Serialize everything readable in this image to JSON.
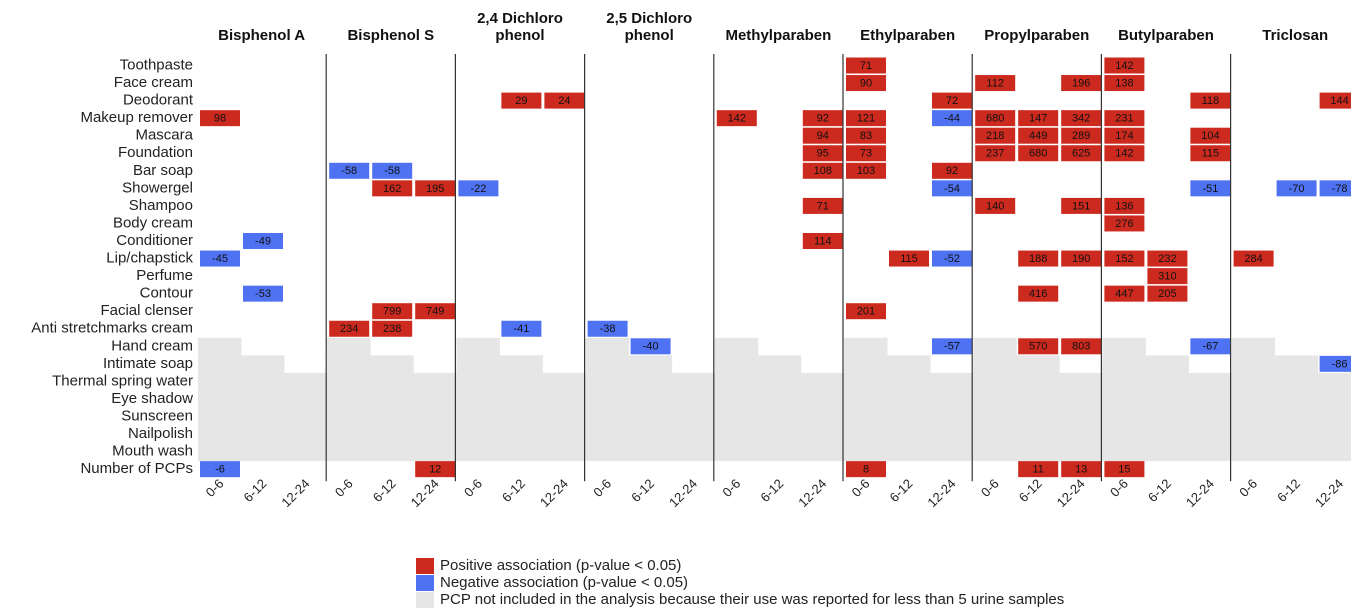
{
  "chart_data": {
    "type": "heatmap",
    "rows": [
      "Toothpaste",
      "Face cream",
      "Deodorant",
      "Makeup remover",
      "Mascara",
      "Foundation",
      "Bar soap",
      "Showergel",
      "Shampoo",
      "Body cream",
      "Conditioner",
      "Lip/chapstick",
      "Perfume",
      "Contour",
      "Facial clenser",
      "Anti stretchmarks cream",
      "Hand cream",
      "Intimate soap",
      "Thermal spring water",
      "Eye shadow",
      "Sunscreen",
      "Nailpolish",
      "Mouth wash",
      "Number of PCPs"
    ],
    "columns": [
      "0-6",
      "6-12",
      "12-24"
    ],
    "excluded_rows": [
      [
        16,
        17,
        18,
        19,
        20,
        21,
        22
      ],
      [
        17,
        18,
        19,
        20,
        21,
        22
      ],
      [
        18,
        19,
        20,
        21,
        22
      ]
    ],
    "legend": [
      {
        "label": "Positive association (p-value < 0.05)",
        "color": "#cc2a1e"
      },
      {
        "label": "Negative association (p-value < 0.05)",
        "color": "#4f72f2"
      },
      {
        "label": "PCP not included in the analysis because their use was reported for less than 5 urine samples",
        "color": "#e6e6e6"
      }
    ],
    "panels": [
      {
        "title": "Bisphenol A",
        "values": [
          [
            null,
            null,
            null
          ],
          [
            null,
            null,
            null
          ],
          [
            null,
            null,
            null
          ],
          [
            98,
            null,
            null
          ],
          [
            null,
            null,
            null
          ],
          [
            null,
            null,
            null
          ],
          [
            null,
            null,
            null
          ],
          [
            null,
            null,
            null
          ],
          [
            null,
            null,
            null
          ],
          [
            null,
            null,
            null
          ],
          [
            null,
            -49,
            null
          ],
          [
            -45,
            null,
            null
          ],
          [
            null,
            null,
            null
          ],
          [
            null,
            -53,
            null
          ],
          [
            null,
            null,
            null
          ],
          [
            null,
            null,
            null
          ],
          [
            null,
            null,
            null
          ],
          [
            null,
            null,
            null
          ],
          [
            null,
            null,
            null
          ],
          [
            null,
            null,
            null
          ],
          [
            null,
            null,
            null
          ],
          [
            null,
            null,
            null
          ],
          [
            null,
            null,
            null
          ],
          [
            -6,
            null,
            null
          ]
        ]
      },
      {
        "title": "Bisphenol S",
        "values": [
          [
            null,
            null,
            null
          ],
          [
            null,
            null,
            null
          ],
          [
            null,
            null,
            null
          ],
          [
            null,
            null,
            null
          ],
          [
            null,
            null,
            null
          ],
          [
            null,
            null,
            null
          ],
          [
            -58,
            -58,
            null
          ],
          [
            null,
            162,
            195
          ],
          [
            null,
            null,
            null
          ],
          [
            null,
            null,
            null
          ],
          [
            null,
            null,
            null
          ],
          [
            null,
            null,
            null
          ],
          [
            null,
            null,
            null
          ],
          [
            null,
            null,
            null
          ],
          [
            null,
            799,
            749
          ],
          [
            234,
            238,
            null
          ],
          [
            null,
            null,
            null
          ],
          [
            null,
            null,
            null
          ],
          [
            null,
            null,
            null
          ],
          [
            null,
            null,
            null
          ],
          [
            null,
            null,
            null
          ],
          [
            null,
            null,
            null
          ],
          [
            null,
            null,
            null
          ],
          [
            null,
            null,
            12
          ]
        ]
      },
      {
        "title": "2,4 Dichloro phenol",
        "values": [
          [
            null,
            null,
            null
          ],
          [
            null,
            null,
            null
          ],
          [
            null,
            29,
            24
          ],
          [
            null,
            null,
            null
          ],
          [
            null,
            null,
            null
          ],
          [
            null,
            null,
            null
          ],
          [
            null,
            null,
            null
          ],
          [
            -22,
            null,
            null
          ],
          [
            null,
            null,
            null
          ],
          [
            null,
            null,
            null
          ],
          [
            null,
            null,
            null
          ],
          [
            null,
            null,
            null
          ],
          [
            null,
            null,
            null
          ],
          [
            null,
            null,
            null
          ],
          [
            null,
            null,
            null
          ],
          [
            null,
            -41,
            null
          ],
          [
            null,
            null,
            null
          ],
          [
            null,
            null,
            null
          ],
          [
            null,
            null,
            null
          ],
          [
            null,
            null,
            null
          ],
          [
            null,
            null,
            null
          ],
          [
            null,
            null,
            null
          ],
          [
            null,
            null,
            null
          ],
          [
            null,
            null,
            null
          ]
        ]
      },
      {
        "title": "2,5 Dichloro phenol",
        "values": [
          [
            null,
            null,
            null
          ],
          [
            null,
            null,
            null
          ],
          [
            null,
            null,
            null
          ],
          [
            null,
            null,
            null
          ],
          [
            null,
            null,
            null
          ],
          [
            null,
            null,
            null
          ],
          [
            null,
            null,
            null
          ],
          [
            null,
            null,
            null
          ],
          [
            null,
            null,
            null
          ],
          [
            null,
            null,
            null
          ],
          [
            null,
            null,
            null
          ],
          [
            null,
            null,
            null
          ],
          [
            null,
            null,
            null
          ],
          [
            null,
            null,
            null
          ],
          [
            null,
            null,
            null
          ],
          [
            -38,
            null,
            null
          ],
          [
            null,
            -40,
            null
          ],
          [
            null,
            null,
            null
          ],
          [
            null,
            null,
            null
          ],
          [
            null,
            null,
            null
          ],
          [
            null,
            null,
            null
          ],
          [
            null,
            null,
            null
          ],
          [
            null,
            null,
            null
          ],
          [
            null,
            null,
            null
          ]
        ]
      },
      {
        "title": "Methylparaben",
        "values": [
          [
            null,
            null,
            null
          ],
          [
            null,
            null,
            null
          ],
          [
            null,
            null,
            null
          ],
          [
            142,
            null,
            92
          ],
          [
            null,
            null,
            94
          ],
          [
            null,
            null,
            95
          ],
          [
            null,
            null,
            108
          ],
          [
            null,
            null,
            null
          ],
          [
            null,
            null,
            71
          ],
          [
            null,
            null,
            null
          ],
          [
            null,
            null,
            114
          ],
          [
            null,
            null,
            null
          ],
          [
            null,
            null,
            null
          ],
          [
            null,
            null,
            null
          ],
          [
            null,
            null,
            null
          ],
          [
            null,
            null,
            null
          ],
          [
            null,
            null,
            null
          ],
          [
            null,
            null,
            null
          ],
          [
            null,
            null,
            null
          ],
          [
            null,
            null,
            null
          ],
          [
            null,
            null,
            null
          ],
          [
            null,
            null,
            null
          ],
          [
            null,
            null,
            null
          ],
          [
            null,
            null,
            null
          ]
        ]
      },
      {
        "title": "Ethylparaben",
        "values": [
          [
            71,
            null,
            null
          ],
          [
            90,
            null,
            null
          ],
          [
            null,
            null,
            72
          ],
          [
            121,
            null,
            -44
          ],
          [
            83,
            null,
            null
          ],
          [
            73,
            null,
            null
          ],
          [
            103,
            null,
            92
          ],
          [
            null,
            null,
            -54
          ],
          [
            null,
            null,
            null
          ],
          [
            null,
            null,
            null
          ],
          [
            null,
            null,
            null
          ],
          [
            null,
            115,
            -52
          ],
          [
            null,
            null,
            null
          ],
          [
            null,
            null,
            null
          ],
          [
            201,
            null,
            null
          ],
          [
            null,
            null,
            null
          ],
          [
            null,
            null,
            -57
          ],
          [
            null,
            null,
            null
          ],
          [
            null,
            null,
            null
          ],
          [
            null,
            null,
            null
          ],
          [
            null,
            null,
            null
          ],
          [
            null,
            null,
            null
          ],
          [
            null,
            null,
            null
          ],
          [
            8,
            null,
            null
          ]
        ]
      },
      {
        "title": "Propylparaben",
        "values": [
          [
            null,
            null,
            null
          ],
          [
            112,
            null,
            196
          ],
          [
            null,
            null,
            null
          ],
          [
            680,
            147,
            342
          ],
          [
            218,
            449,
            289
          ],
          [
            237,
            680,
            625
          ],
          [
            null,
            null,
            null
          ],
          [
            null,
            null,
            null
          ],
          [
            140,
            null,
            151
          ],
          [
            null,
            null,
            null
          ],
          [
            null,
            null,
            null
          ],
          [
            null,
            188,
            190
          ],
          [
            null,
            null,
            null
          ],
          [
            null,
            416,
            null
          ],
          [
            null,
            null,
            null
          ],
          [
            null,
            null,
            null
          ],
          [
            null,
            570,
            803
          ],
          [
            null,
            null,
            null
          ],
          [
            null,
            null,
            null
          ],
          [
            null,
            null,
            null
          ],
          [
            null,
            null,
            null
          ],
          [
            null,
            null,
            null
          ],
          [
            null,
            null,
            null
          ],
          [
            null,
            11,
            13
          ]
        ]
      },
      {
        "title": "Butylparaben",
        "values": [
          [
            142,
            null,
            null
          ],
          [
            138,
            null,
            null
          ],
          [
            null,
            null,
            118
          ],
          [
            231,
            null,
            null
          ],
          [
            174,
            null,
            104
          ],
          [
            142,
            null,
            115
          ],
          [
            null,
            null,
            null
          ],
          [
            null,
            null,
            -51
          ],
          [
            136,
            null,
            null
          ],
          [
            276,
            null,
            null
          ],
          [
            null,
            null,
            null
          ],
          [
            152,
            232,
            null
          ],
          [
            null,
            310,
            null
          ],
          [
            447,
            205,
            null
          ],
          [
            null,
            null,
            null
          ],
          [
            null,
            null,
            null
          ],
          [
            null,
            null,
            -67
          ],
          [
            null,
            null,
            null
          ],
          [
            null,
            null,
            null
          ],
          [
            null,
            null,
            null
          ],
          [
            null,
            null,
            null
          ],
          [
            null,
            null,
            null
          ],
          [
            null,
            null,
            null
          ],
          [
            15,
            null,
            null
          ]
        ]
      },
      {
        "title": "Triclosan",
        "values": [
          [
            null,
            null,
            null
          ],
          [
            null,
            null,
            null
          ],
          [
            null,
            null,
            144
          ],
          [
            null,
            null,
            null
          ],
          [
            null,
            null,
            null
          ],
          [
            null,
            null,
            null
          ],
          [
            null,
            null,
            null
          ],
          [
            null,
            -70,
            -78
          ],
          [
            null,
            null,
            null
          ],
          [
            null,
            null,
            null
          ],
          [
            null,
            null,
            null
          ],
          [
            284,
            null,
            null
          ],
          [
            null,
            null,
            null
          ],
          [
            null,
            null,
            null
          ],
          [
            null,
            null,
            null
          ],
          [
            null,
            null,
            null
          ],
          [
            null,
            null,
            null
          ],
          [
            null,
            null,
            -86
          ],
          [
            null,
            null,
            null
          ],
          [
            null,
            null,
            null
          ],
          [
            null,
            null,
            null
          ],
          [
            null,
            null,
            null
          ],
          [
            null,
            null,
            null
          ],
          [
            null,
            null,
            null
          ]
        ]
      }
    ]
  }
}
